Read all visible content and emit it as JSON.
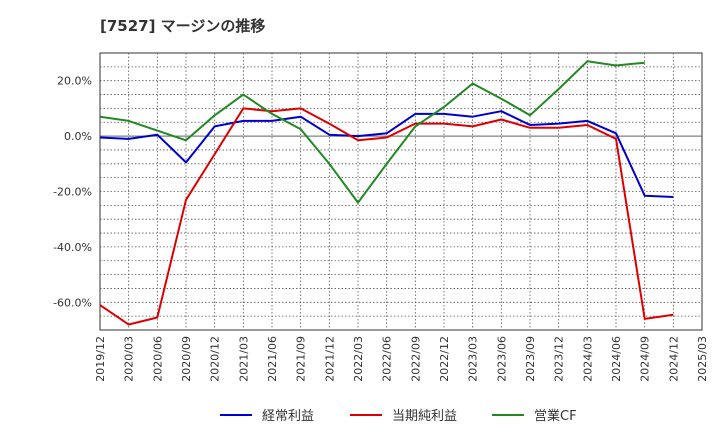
{
  "chart_data": {
    "type": "line",
    "title": "[7527]  マージンの推移",
    "xlabel": "",
    "ylabel": "",
    "ylim": [
      -70,
      30
    ],
    "y_ticks": [
      20,
      0,
      -20,
      -40,
      -60
    ],
    "y_tick_labels": [
      "20.0%",
      "0.0%",
      "-20.0%",
      "-40.0%",
      "-60.0%"
    ],
    "x": [
      "2019/12",
      "2020/03",
      "2020/06",
      "2020/09",
      "2020/12",
      "2021/03",
      "2021/06",
      "2021/09",
      "2021/12",
      "2022/03",
      "2022/06",
      "2022/09",
      "2022/12",
      "2023/03",
      "2023/06",
      "2023/09",
      "2023/12",
      "2024/03",
      "2024/06",
      "2024/09",
      "2024/12",
      "2025/03"
    ],
    "grid": true,
    "legend_position": "bottom-center",
    "series": [
      {
        "name": "経常利益",
        "color": "#0000cc",
        "values": [
          -0.5,
          -1.0,
          0.5,
          -9.5,
          3.5,
          5.5,
          5.5,
          7.0,
          0.5,
          0.0,
          1.0,
          8.0,
          8.0,
          7.0,
          9.0,
          4.0,
          4.5,
          5.5,
          1.0,
          -21.5,
          -22.0,
          null
        ]
      },
      {
        "name": "当期純利益",
        "color": "#dd0000",
        "values": [
          -61.0,
          -68.0,
          -65.5,
          -23.0,
          -6.5,
          10.0,
          9.0,
          10.0,
          4.5,
          -1.5,
          -0.5,
          4.5,
          4.5,
          3.5,
          6.0,
          3.0,
          3.0,
          4.0,
          -1.0,
          -66.0,
          -64.5,
          null
        ]
      },
      {
        "name": "営業CF",
        "color": "#228822",
        "values": [
          7.0,
          5.5,
          2.0,
          -1.5,
          7.5,
          15.0,
          8.0,
          2.5,
          -10.0,
          -24.0,
          -10.0,
          3.5,
          10.5,
          19.0,
          13.5,
          7.5,
          17.0,
          27.0,
          25.5,
          26.5,
          null,
          null
        ]
      }
    ]
  }
}
